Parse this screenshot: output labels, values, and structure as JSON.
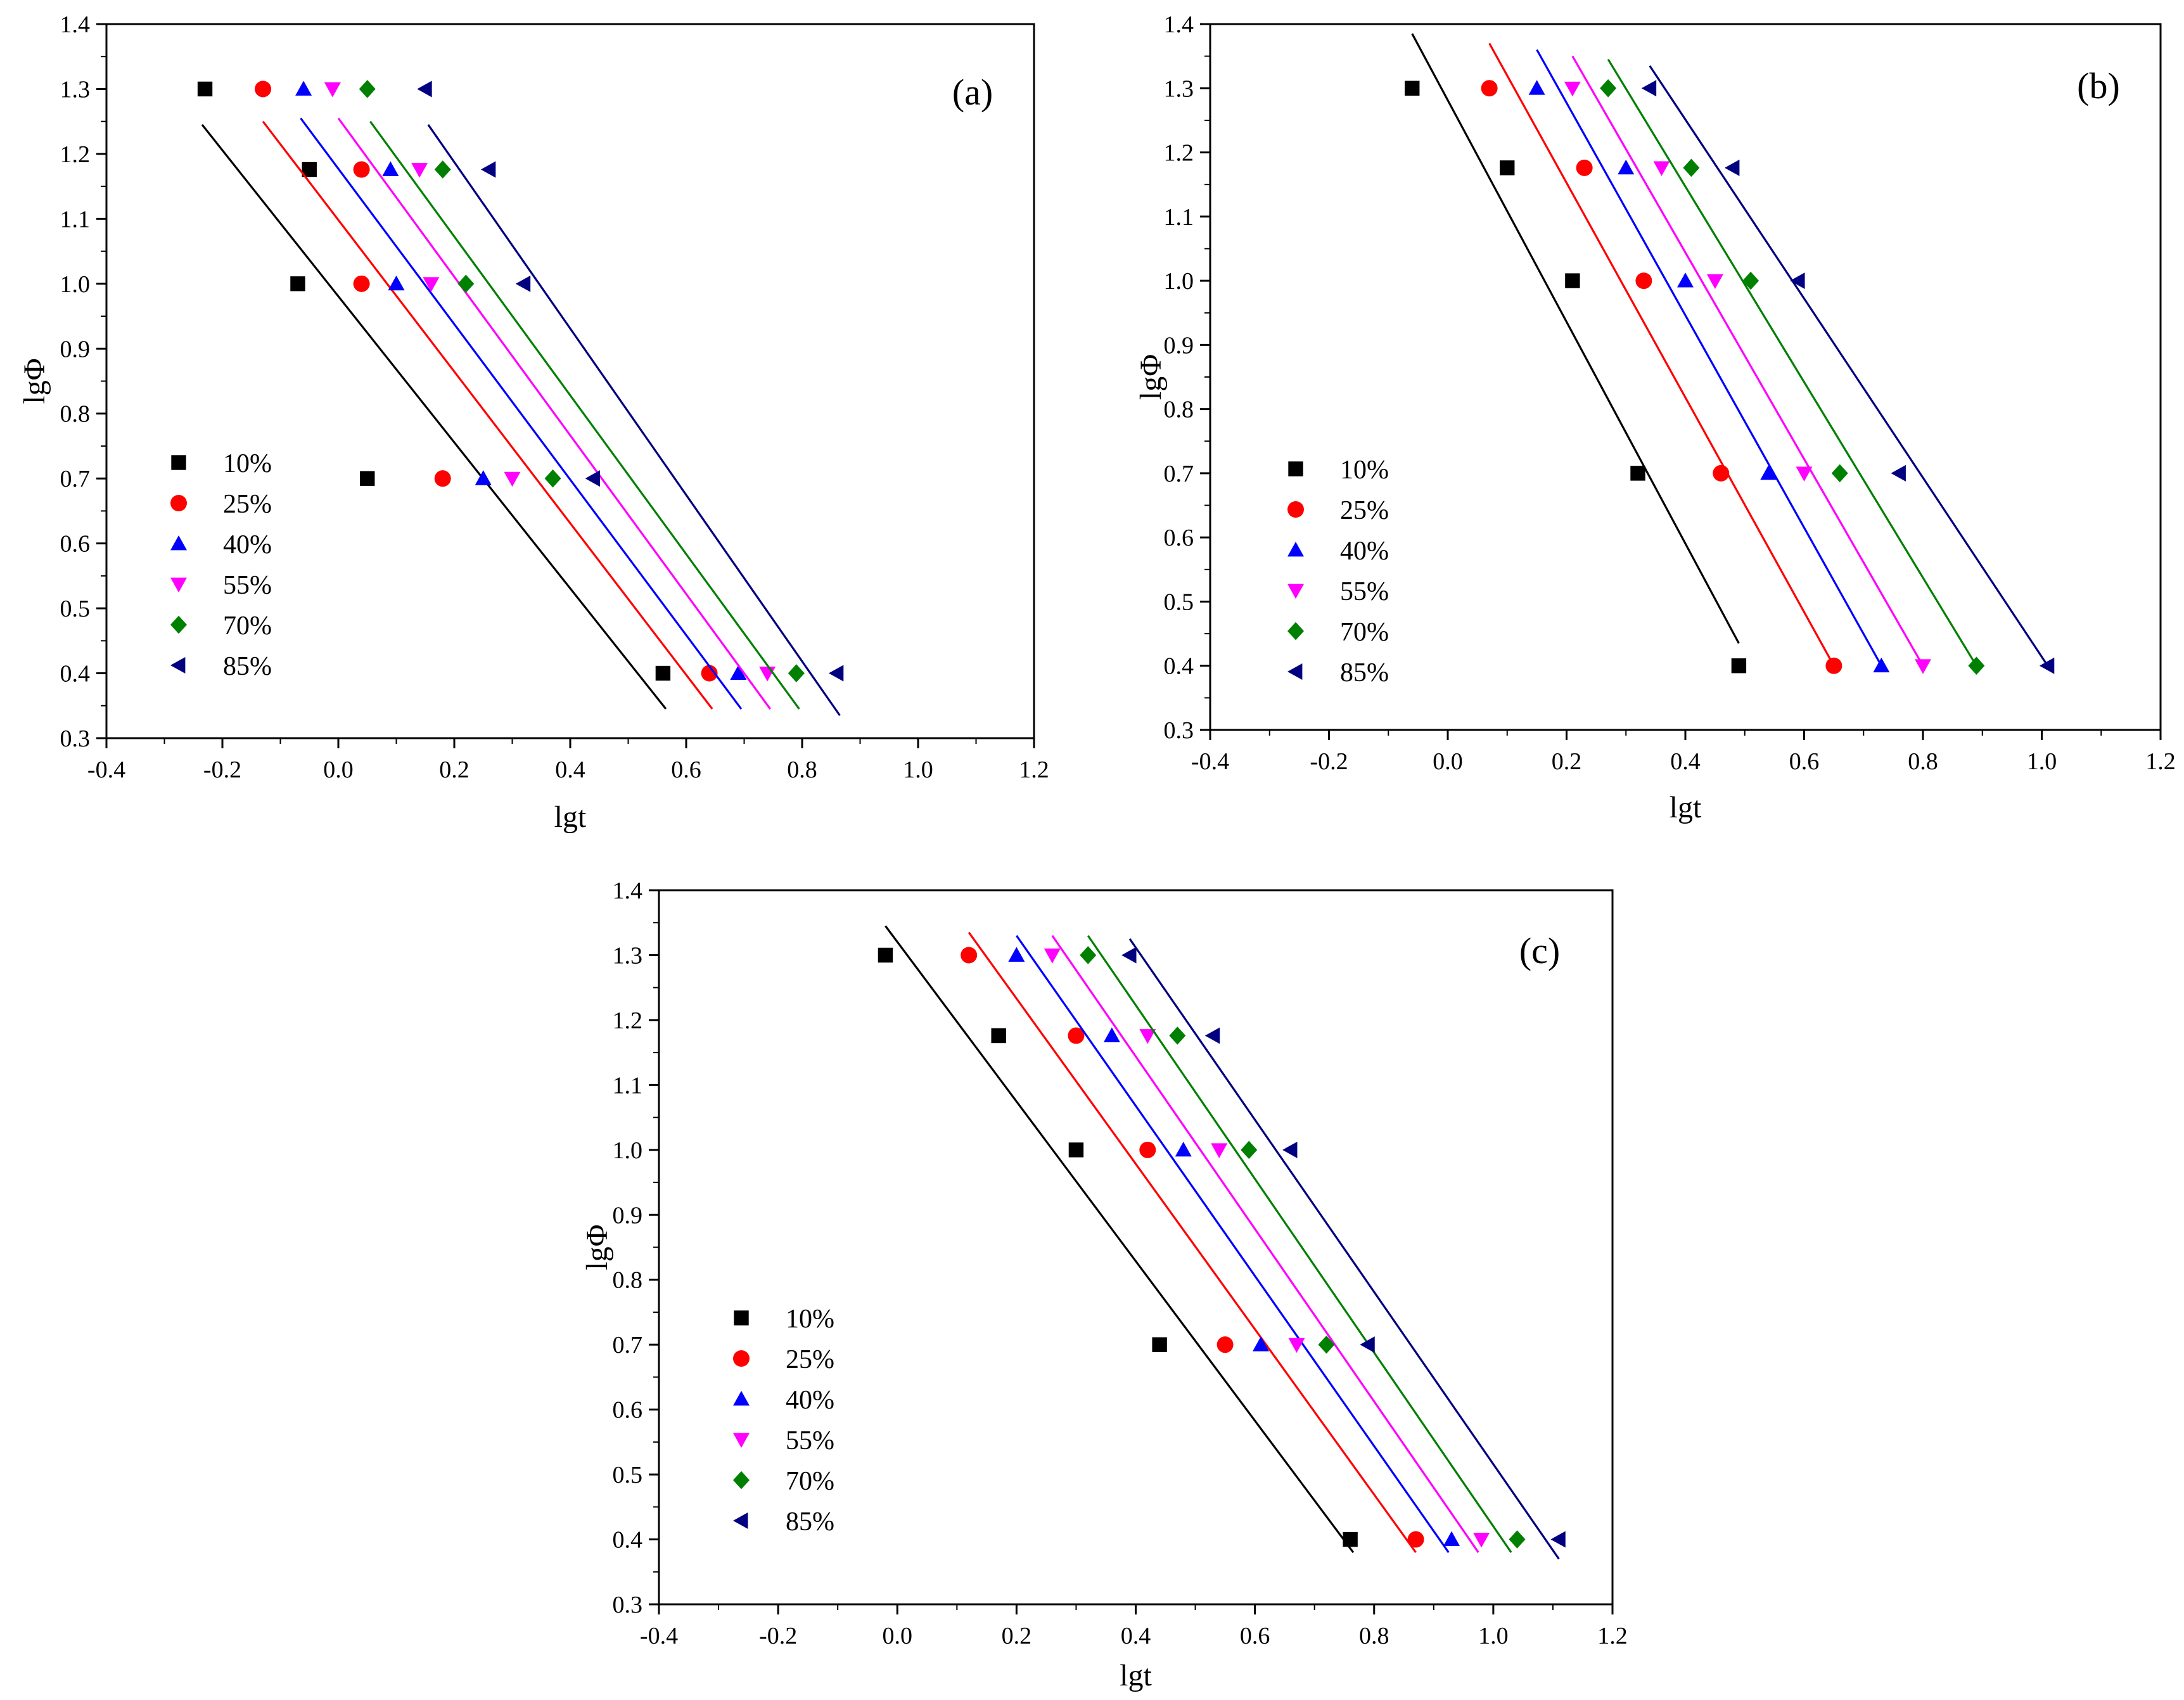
{
  "figure": {
    "series_order": [
      "10%",
      "25%",
      "40%",
      "55%",
      "70%",
      "85%"
    ]
  },
  "series_style": [
    {
      "name": "10%",
      "color": "#000000",
      "marker": "square"
    },
    {
      "name": "25%",
      "color": "#ff0000",
      "marker": "circle"
    },
    {
      "name": "40%",
      "color": "#0000ff",
      "marker": "triangle-up"
    },
    {
      "name": "55%",
      "color": "#ff00ff",
      "marker": "triangle-down"
    },
    {
      "name": "70%",
      "color": "#008000",
      "marker": "diamond"
    },
    {
      "name": "85%",
      "color": "#000080",
      "marker": "triangle-left"
    }
  ],
  "chart_data": [
    {
      "type": "scatter",
      "panel_label": "(a)",
      "title": "",
      "xlabel": "lgt",
      "ylabel": "lgΦ",
      "xlim": [
        -0.4,
        1.2
      ],
      "ylim": [
        0.3,
        1.4
      ],
      "xticks": [
        "-0.4",
        "-0.2",
        "0.0",
        "0.2",
        "0.4",
        "0.6",
        "0.8",
        "1.0",
        "1.2"
      ],
      "yticks": [
        "0.3",
        "0.4",
        "0.5",
        "0.6",
        "0.7",
        "0.8",
        "0.9",
        "1.0",
        "1.1",
        "1.2",
        "1.3",
        "1.4"
      ],
      "legend_position": "bottom-left",
      "series": [
        {
          "name": "10%",
          "x": [
            -0.23,
            -0.05,
            -0.07,
            0.05,
            0.56
          ],
          "y": [
            1.3,
            1.176,
            1.0,
            0.7,
            0.4
          ],
          "fit_x": [
            -0.235,
            0.565
          ],
          "fit_y": [
            1.245,
            0.345
          ]
        },
        {
          "name": "25%",
          "x": [
            -0.13,
            0.04,
            0.04,
            0.18,
            0.64
          ],
          "y": [
            1.3,
            1.176,
            1.0,
            0.7,
            0.4
          ],
          "fit_x": [
            -0.13,
            0.645
          ],
          "fit_y": [
            1.25,
            0.345
          ]
        },
        {
          "name": "40%",
          "x": [
            -0.06,
            0.09,
            0.1,
            0.25,
            0.69
          ],
          "y": [
            1.3,
            1.176,
            1.0,
            0.7,
            0.4
          ],
          "fit_x": [
            -0.065,
            0.695
          ],
          "fit_y": [
            1.255,
            0.345
          ]
        },
        {
          "name": "55%",
          "x": [
            -0.01,
            0.14,
            0.16,
            0.3,
            0.74
          ],
          "y": [
            1.3,
            1.176,
            1.0,
            0.7,
            0.4
          ],
          "fit_x": [
            0.0,
            0.745
          ],
          "fit_y": [
            1.255,
            0.345
          ]
        },
        {
          "name": "70%",
          "x": [
            0.05,
            0.18,
            0.22,
            0.37,
            0.79
          ],
          "y": [
            1.3,
            1.176,
            1.0,
            0.7,
            0.4
          ],
          "fit_x": [
            0.055,
            0.795
          ],
          "fit_y": [
            1.25,
            0.345
          ]
        },
        {
          "name": "85%",
          "x": [
            0.15,
            0.26,
            0.32,
            0.44,
            0.86
          ],
          "y": [
            1.3,
            1.176,
            1.0,
            0.7,
            0.4
          ],
          "fit_x": [
            0.155,
            0.865
          ],
          "fit_y": [
            1.245,
            0.335
          ]
        }
      ]
    },
    {
      "type": "scatter",
      "panel_label": "(b)",
      "title": "",
      "xlabel": "lgt",
      "ylabel": "lgΦ",
      "xlim": [
        -0.4,
        1.2
      ],
      "ylim": [
        0.3,
        1.4
      ],
      "xticks": [
        "-0.4",
        "-0.2",
        "0.0",
        "0.2",
        "0.4",
        "0.6",
        "0.8",
        "1.0",
        "1.2"
      ],
      "yticks": [
        "0.3",
        "0.4",
        "0.5",
        "0.6",
        "0.7",
        "0.8",
        "0.9",
        "1.0",
        "1.1",
        "1.2",
        "1.3",
        "1.4"
      ],
      "legend_position": "bottom-left",
      "series": [
        {
          "name": "10%",
          "x": [
            -0.06,
            0.1,
            0.21,
            0.32,
            0.49
          ],
          "y": [
            1.3,
            1.176,
            1.0,
            0.7,
            0.4
          ],
          "fit_x": [
            -0.06,
            0.49
          ],
          "fit_y": [
            1.385,
            0.435
          ]
        },
        {
          "name": "25%",
          "x": [
            0.07,
            0.23,
            0.33,
            0.46,
            0.65
          ],
          "y": [
            1.3,
            1.176,
            1.0,
            0.7,
            0.4
          ],
          "fit_x": [
            0.07,
            0.65
          ],
          "fit_y": [
            1.37,
            0.4
          ]
        },
        {
          "name": "40%",
          "x": [
            0.15,
            0.3,
            0.4,
            0.54,
            0.73
          ],
          "y": [
            1.3,
            1.176,
            1.0,
            0.7,
            0.4
          ],
          "fit_x": [
            0.15,
            0.73
          ],
          "fit_y": [
            1.36,
            0.4
          ]
        },
        {
          "name": "55%",
          "x": [
            0.21,
            0.36,
            0.45,
            0.6,
            0.8
          ],
          "y": [
            1.3,
            1.176,
            1.0,
            0.7,
            0.4
          ],
          "fit_x": [
            0.21,
            0.8
          ],
          "fit_y": [
            1.35,
            0.4
          ]
        },
        {
          "name": "70%",
          "x": [
            0.27,
            0.41,
            0.51,
            0.66,
            0.89
          ],
          "y": [
            1.3,
            1.176,
            1.0,
            0.7,
            0.4
          ],
          "fit_x": [
            0.27,
            0.89
          ],
          "fit_y": [
            1.345,
            0.4
          ]
        },
        {
          "name": "85%",
          "x": [
            0.34,
            0.48,
            0.59,
            0.76,
            1.01
          ],
          "y": [
            1.3,
            1.176,
            1.0,
            0.7,
            0.4
          ],
          "fit_x": [
            0.34,
            1.01
          ],
          "fit_y": [
            1.335,
            0.4
          ]
        }
      ]
    },
    {
      "type": "scatter",
      "panel_label": "(c)",
      "title": "",
      "xlabel": "lgt",
      "ylabel": "lgΦ",
      "xlim": [
        -0.4,
        1.2
      ],
      "ylim": [
        0.3,
        1.4
      ],
      "xticks": [
        "-0.4",
        "-0.2",
        "0.0",
        "0.2",
        "0.4",
        "0.6",
        "0.8",
        "1.0",
        "1.2"
      ],
      "yticks": [
        "0.3",
        "0.4",
        "0.5",
        "0.6",
        "0.7",
        "0.8",
        "0.9",
        "1.0",
        "1.1",
        "1.2",
        "1.3",
        "1.4"
      ],
      "legend_position": "bottom-left",
      "series": [
        {
          "name": "10%",
          "x": [
            -0.02,
            0.17,
            0.3,
            0.44,
            0.76
          ],
          "y": [
            1.3,
            1.176,
            1.0,
            0.7,
            0.4
          ],
          "fit_x": [
            -0.02,
            0.765
          ],
          "fit_y": [
            1.345,
            0.38
          ]
        },
        {
          "name": "25%",
          "x": [
            0.12,
            0.3,
            0.42,
            0.55,
            0.87
          ],
          "y": [
            1.3,
            1.176,
            1.0,
            0.7,
            0.4
          ],
          "fit_x": [
            0.12,
            0.87
          ],
          "fit_y": [
            1.335,
            0.38
          ]
        },
        {
          "name": "40%",
          "x": [
            0.2,
            0.36,
            0.48,
            0.61,
            0.93
          ],
          "y": [
            1.3,
            1.176,
            1.0,
            0.7,
            0.4
          ],
          "fit_x": [
            0.2,
            0.925
          ],
          "fit_y": [
            1.33,
            0.38
          ]
        },
        {
          "name": "55%",
          "x": [
            0.26,
            0.42,
            0.54,
            0.67,
            0.98
          ],
          "y": [
            1.3,
            1.176,
            1.0,
            0.7,
            0.4
          ],
          "fit_x": [
            0.26,
            0.975
          ],
          "fit_y": [
            1.33,
            0.38
          ]
        },
        {
          "name": "70%",
          "x": [
            0.32,
            0.47,
            0.59,
            0.72,
            1.04
          ],
          "y": [
            1.3,
            1.176,
            1.0,
            0.7,
            0.4
          ],
          "fit_x": [
            0.32,
            1.03
          ],
          "fit_y": [
            1.33,
            0.38
          ]
        },
        {
          "name": "85%",
          "x": [
            0.39,
            0.53,
            0.66,
            0.79,
            1.11
          ],
          "y": [
            1.3,
            1.176,
            1.0,
            0.7,
            0.4
          ],
          "fit_x": [
            0.39,
            1.11
          ],
          "fit_y": [
            1.325,
            0.37
          ]
        }
      ]
    }
  ]
}
